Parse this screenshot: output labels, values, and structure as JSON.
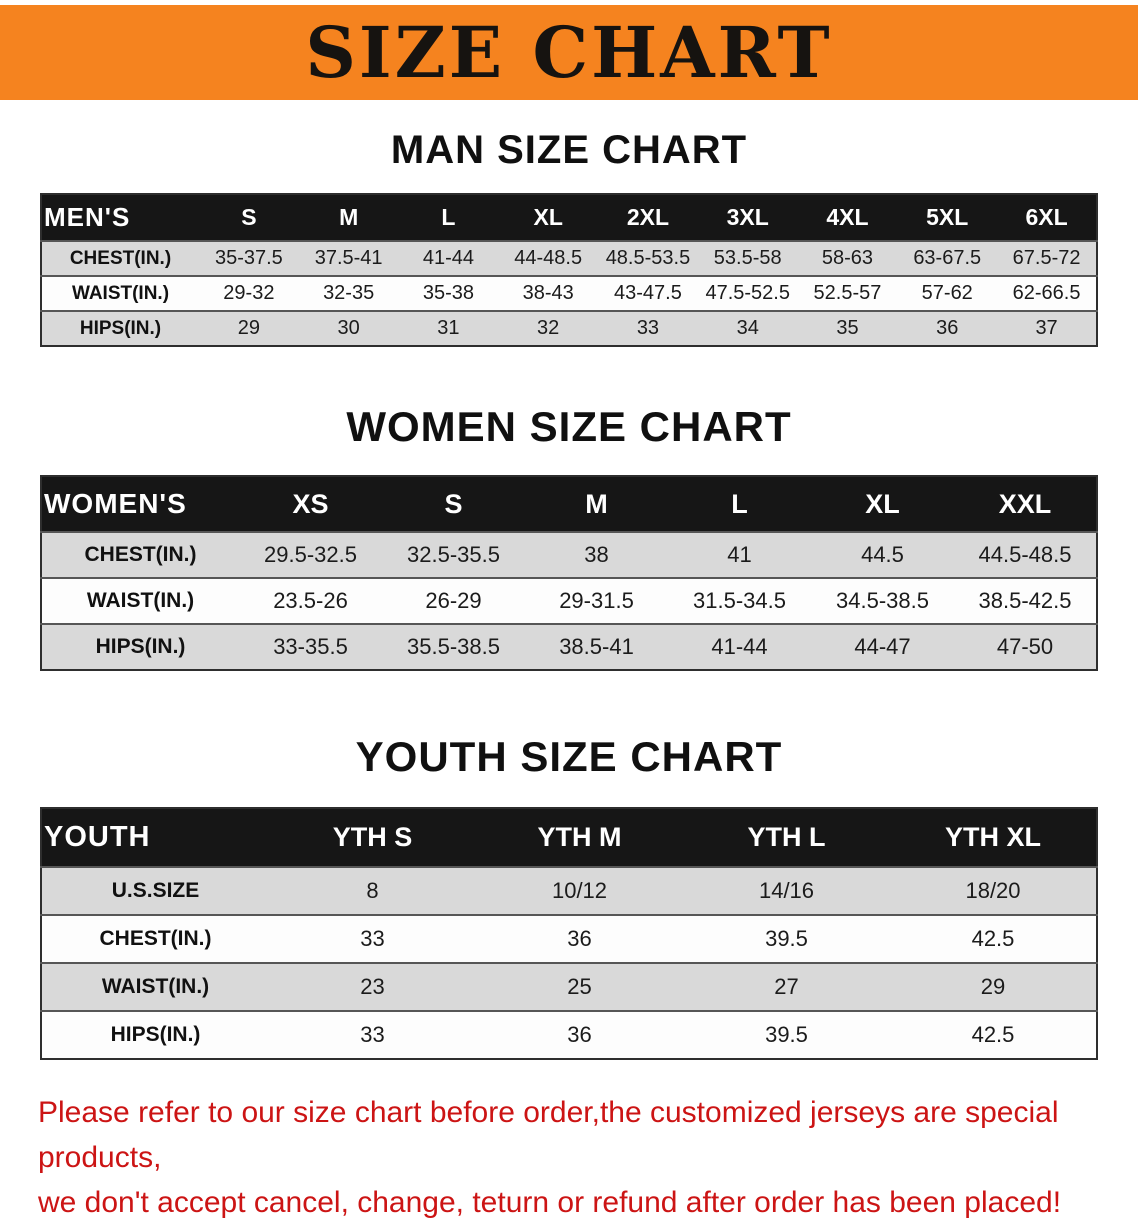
{
  "banner": {
    "title": "SIZE CHART"
  },
  "colors": {
    "banner_orange": "#f5831f",
    "table_header_black": "#161616",
    "row_shaded_gray": "#d9d9d9",
    "disclaimer_red": "#cc1414"
  },
  "sections": [
    {
      "id": "men",
      "heading": "MAN SIZE CHART",
      "table": {
        "header_label": "MEN'S",
        "columns": [
          "S",
          "M",
          "L",
          "XL",
          "2XL",
          "3XL",
          "4XL",
          "5XL",
          "6XL"
        ],
        "rows": [
          {
            "label": "CHEST(IN.)",
            "values": [
              "35-37.5",
              "37.5-41",
              "41-44",
              "44-48.5",
              "48.5-53.5",
              "53.5-58",
              "58-63",
              "63-67.5",
              "67.5-72"
            ]
          },
          {
            "label": "WAIST(IN.)",
            "values": [
              "29-32",
              "32-35",
              "35-38",
              "38-43",
              "43-47.5",
              "47.5-52.5",
              "52.5-57",
              "57-62",
              "62-66.5"
            ]
          },
          {
            "label": "HIPS(IN.)",
            "values": [
              "29",
              "30",
              "31",
              "32",
              "33",
              "34",
              "35",
              "36",
              "37"
            ]
          }
        ]
      }
    },
    {
      "id": "women",
      "heading": "WOMEN SIZE CHART",
      "table": {
        "header_label": "WOMEN'S",
        "columns": [
          "XS",
          "S",
          "M",
          "L",
          "XL",
          "XXL"
        ],
        "rows": [
          {
            "label": "CHEST(IN.)",
            "values": [
              "29.5-32.5",
              "32.5-35.5",
              "38",
              "41",
              "44.5",
              "44.5-48.5"
            ]
          },
          {
            "label": "WAIST(IN.)",
            "values": [
              "23.5-26",
              "26-29",
              "29-31.5",
              "31.5-34.5",
              "34.5-38.5",
              "38.5-42.5"
            ]
          },
          {
            "label": "HIPS(IN.)",
            "values": [
              "33-35.5",
              "35.5-38.5",
              "38.5-41",
              "41-44",
              "44-47",
              "47-50"
            ]
          }
        ]
      }
    },
    {
      "id": "youth",
      "heading": "YOUTH SIZE CHART",
      "table": {
        "header_label": "YOUTH",
        "columns": [
          "YTH S",
          "YTH M",
          "YTH L",
          "YTH XL"
        ],
        "rows": [
          {
            "label": "U.S.SIZE",
            "values": [
              "8",
              "10/12",
              "14/16",
              "18/20"
            ]
          },
          {
            "label": "CHEST(IN.)",
            "values": [
              "33",
              "36",
              "39.5",
              "42.5"
            ]
          },
          {
            "label": "WAIST(IN.)",
            "values": [
              "23",
              "25",
              "27",
              "29"
            ]
          },
          {
            "label": "HIPS(IN.)",
            "values": [
              "33",
              "36",
              "39.5",
              "42.5"
            ]
          }
        ]
      }
    }
  ],
  "disclaimer": {
    "line1": "Please refer to our size chart before order,the customized jerseys are special products,",
    "line2": "we don't accept cancel, change, teturn or refund after order has been placed!"
  }
}
